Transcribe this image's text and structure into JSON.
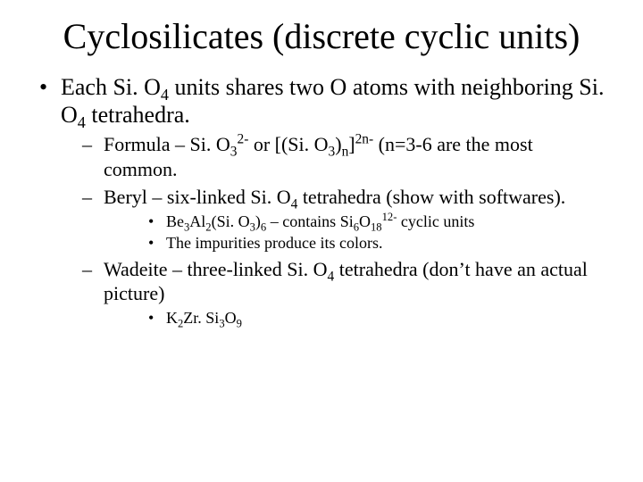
{
  "title": "Cyclosilicates (discrete cyclic units)",
  "bullet1_pre": "Each Si. O",
  "sub4a": "4",
  "bullet1_mid": " units shares two O atoms with neighboring Si. O",
  "sub4b": "4",
  "bullet1_post": " tetrahedra.",
  "l2a_pre": "Formula – Si. O",
  "l2a_sub3a": "3",
  "l2a_sup2m": "2-",
  "l2a_mid1": " or [(Si. O",
  "l2a_sub3b": "3",
  "l2a_mid2": ")",
  "l2a_subn": "n",
  "l2a_mid3": "]",
  "l2a_sup2n": "2n-",
  "l2a_post": " (n=3-6 are the most common.",
  "l2b_pre": "Beryl – six-linked Si. O",
  "l2b_sub4": "4",
  "l2b_post": " tetrahedra (show with softwares).",
  "l3a_pre": "Be",
  "l3a_sub3a": "3",
  "l3a_mid1": "Al",
  "l3a_sub2a": "2",
  "l3a_mid2": "(Si. O",
  "l3a_sub3b": "3",
  "l3a_mid3": ")",
  "l3a_sub6": "6",
  "l3a_mid4": " – contains Si",
  "l3a_sub6b": "6",
  "l3a_mid5": "O",
  "l3a_sub18": "18",
  "l3a_sup12": "12-",
  "l3a_post": " cyclic units",
  "l3b": "The impurities produce its colors.",
  "l2c_pre": "Wadeite – three-linked Si. O",
  "l2c_sub4": "4",
  "l2c_post": " tetrahedra (don’t have an actual picture)",
  "l3c_pre": "K",
  "l3c_sub2": "2",
  "l3c_mid1": "Zr. Si",
  "l3c_sub3": "3",
  "l3c_mid2": "O",
  "l3c_sub9": "9"
}
